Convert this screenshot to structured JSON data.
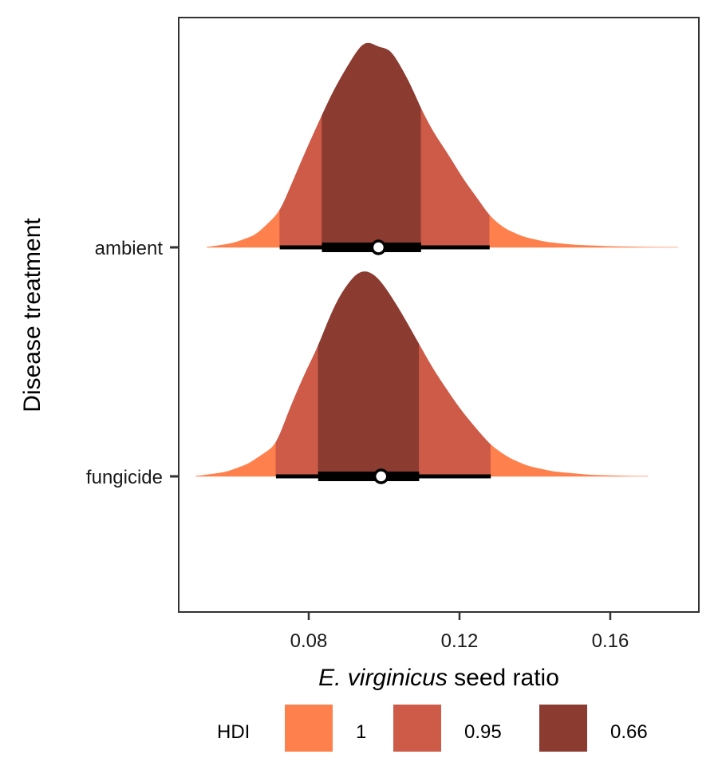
{
  "chart_data": {
    "type": "density-halfeye",
    "xlabel_italic": "E. virginicus",
    "xlabel_rest": " seed ratio",
    "ylabel": "Disease treatment",
    "xlim": [
      0.0455,
      0.1835
    ],
    "x_ticks": [
      0.08,
      0.12,
      0.16
    ],
    "x_tick_labels": [
      "0.08",
      "0.12",
      "0.16"
    ],
    "grid": false,
    "categories": [
      "ambient",
      "fungicide"
    ],
    "series": [
      {
        "name": "ambient",
        "median": 0.0985,
        "interval_66": [
          0.0835,
          0.1098
        ],
        "interval_95": [
          0.0723,
          0.128
        ],
        "range": [
          0.053,
          0.178
        ],
        "density_x": [
          0.053,
          0.06,
          0.066,
          0.07,
          0.0723,
          0.076,
          0.08,
          0.0835,
          0.086,
          0.089,
          0.092,
          0.094,
          0.095,
          0.097,
          0.099,
          0.101,
          0.102,
          0.104,
          0.107,
          0.1098,
          0.113,
          0.117,
          0.121,
          0.125,
          0.128,
          0.132,
          0.137,
          0.143,
          0.15,
          0.16,
          0.17,
          0.178
        ],
        "density": [
          0.0,
          0.02,
          0.06,
          0.13,
          0.17,
          0.33,
          0.5,
          0.64,
          0.74,
          0.84,
          0.93,
          0.985,
          1.0,
          0.99,
          0.965,
          0.97,
          0.95,
          0.89,
          0.79,
          0.67,
          0.56,
          0.45,
          0.33,
          0.23,
          0.15,
          0.09,
          0.05,
          0.025,
          0.012,
          0.004,
          0.001,
          0.0
        ]
      },
      {
        "name": "fungicide",
        "median": 0.0992,
        "interval_66": [
          0.0825,
          0.1093
        ],
        "interval_95": [
          0.0713,
          0.1283
        ],
        "range": [
          0.05,
          0.17
        ],
        "density_x": [
          0.05,
          0.058,
          0.064,
          0.068,
          0.0713,
          0.075,
          0.079,
          0.0825,
          0.085,
          0.088,
          0.091,
          0.093,
          0.095,
          0.097,
          0.099,
          0.102,
          0.105,
          0.1093,
          0.113,
          0.117,
          0.12,
          0.124,
          0.1283,
          0.133,
          0.138,
          0.145,
          0.155,
          0.165,
          0.17
        ],
        "density": [
          0.0,
          0.02,
          0.06,
          0.11,
          0.15,
          0.33,
          0.5,
          0.63,
          0.75,
          0.87,
          0.95,
          0.99,
          1.0,
          0.985,
          0.95,
          0.87,
          0.78,
          0.64,
          0.52,
          0.41,
          0.33,
          0.24,
          0.15,
          0.09,
          0.05,
          0.022,
          0.006,
          0.001,
          0.0
        ]
      }
    ],
    "legend": {
      "title": "HDI",
      "placement": "bottom",
      "items": [
        {
          "label": "1",
          "color": "#fe804d"
        },
        {
          "label": "0.95",
          "color": "#cd5b48"
        },
        {
          "label": "0.66",
          "color": "#8b3b30"
        }
      ]
    },
    "colors": {
      "hdi_1": "#fe804d",
      "hdi_95": "#cd5b48",
      "hdi_66": "#8b3b30",
      "interval": "#000000",
      "median_fill": "#ffffff",
      "panel_border": "#333333"
    }
  }
}
